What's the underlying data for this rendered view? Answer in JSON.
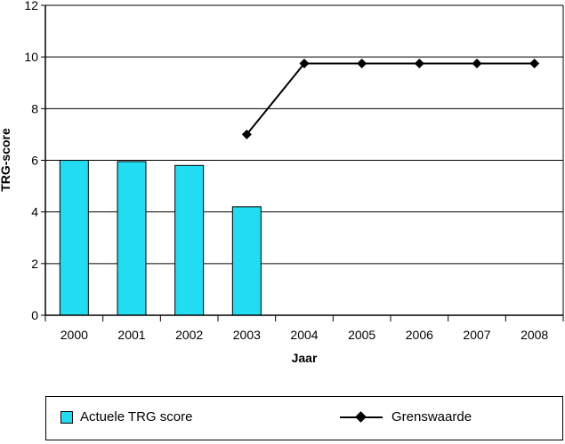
{
  "chart_data": {
    "type": "bar",
    "categories": [
      "2000",
      "2001",
      "2002",
      "2003",
      "2004",
      "2005",
      "2006",
      "2007",
      "2008"
    ],
    "series": [
      {
        "name": "Actuele TRG score",
        "type": "bar",
        "values": [
          6.0,
          5.95,
          5.8,
          4.2,
          null,
          null,
          null,
          null,
          null
        ],
        "color": "#22DDF2"
      },
      {
        "name": "Grenswaarde",
        "type": "line",
        "marker": "diamond",
        "values": [
          null,
          null,
          null,
          7.0,
          9.75,
          9.75,
          9.75,
          9.75,
          9.75
        ],
        "color": "#000000"
      }
    ],
    "xlabel": "Jaar",
    "ylabel": "TRG-score",
    "ylim": [
      0,
      12
    ],
    "yticks": [
      "0",
      "2",
      "4",
      "6",
      "8",
      "10",
      "12"
    ],
    "grid": true,
    "legend_position": "bottom"
  }
}
